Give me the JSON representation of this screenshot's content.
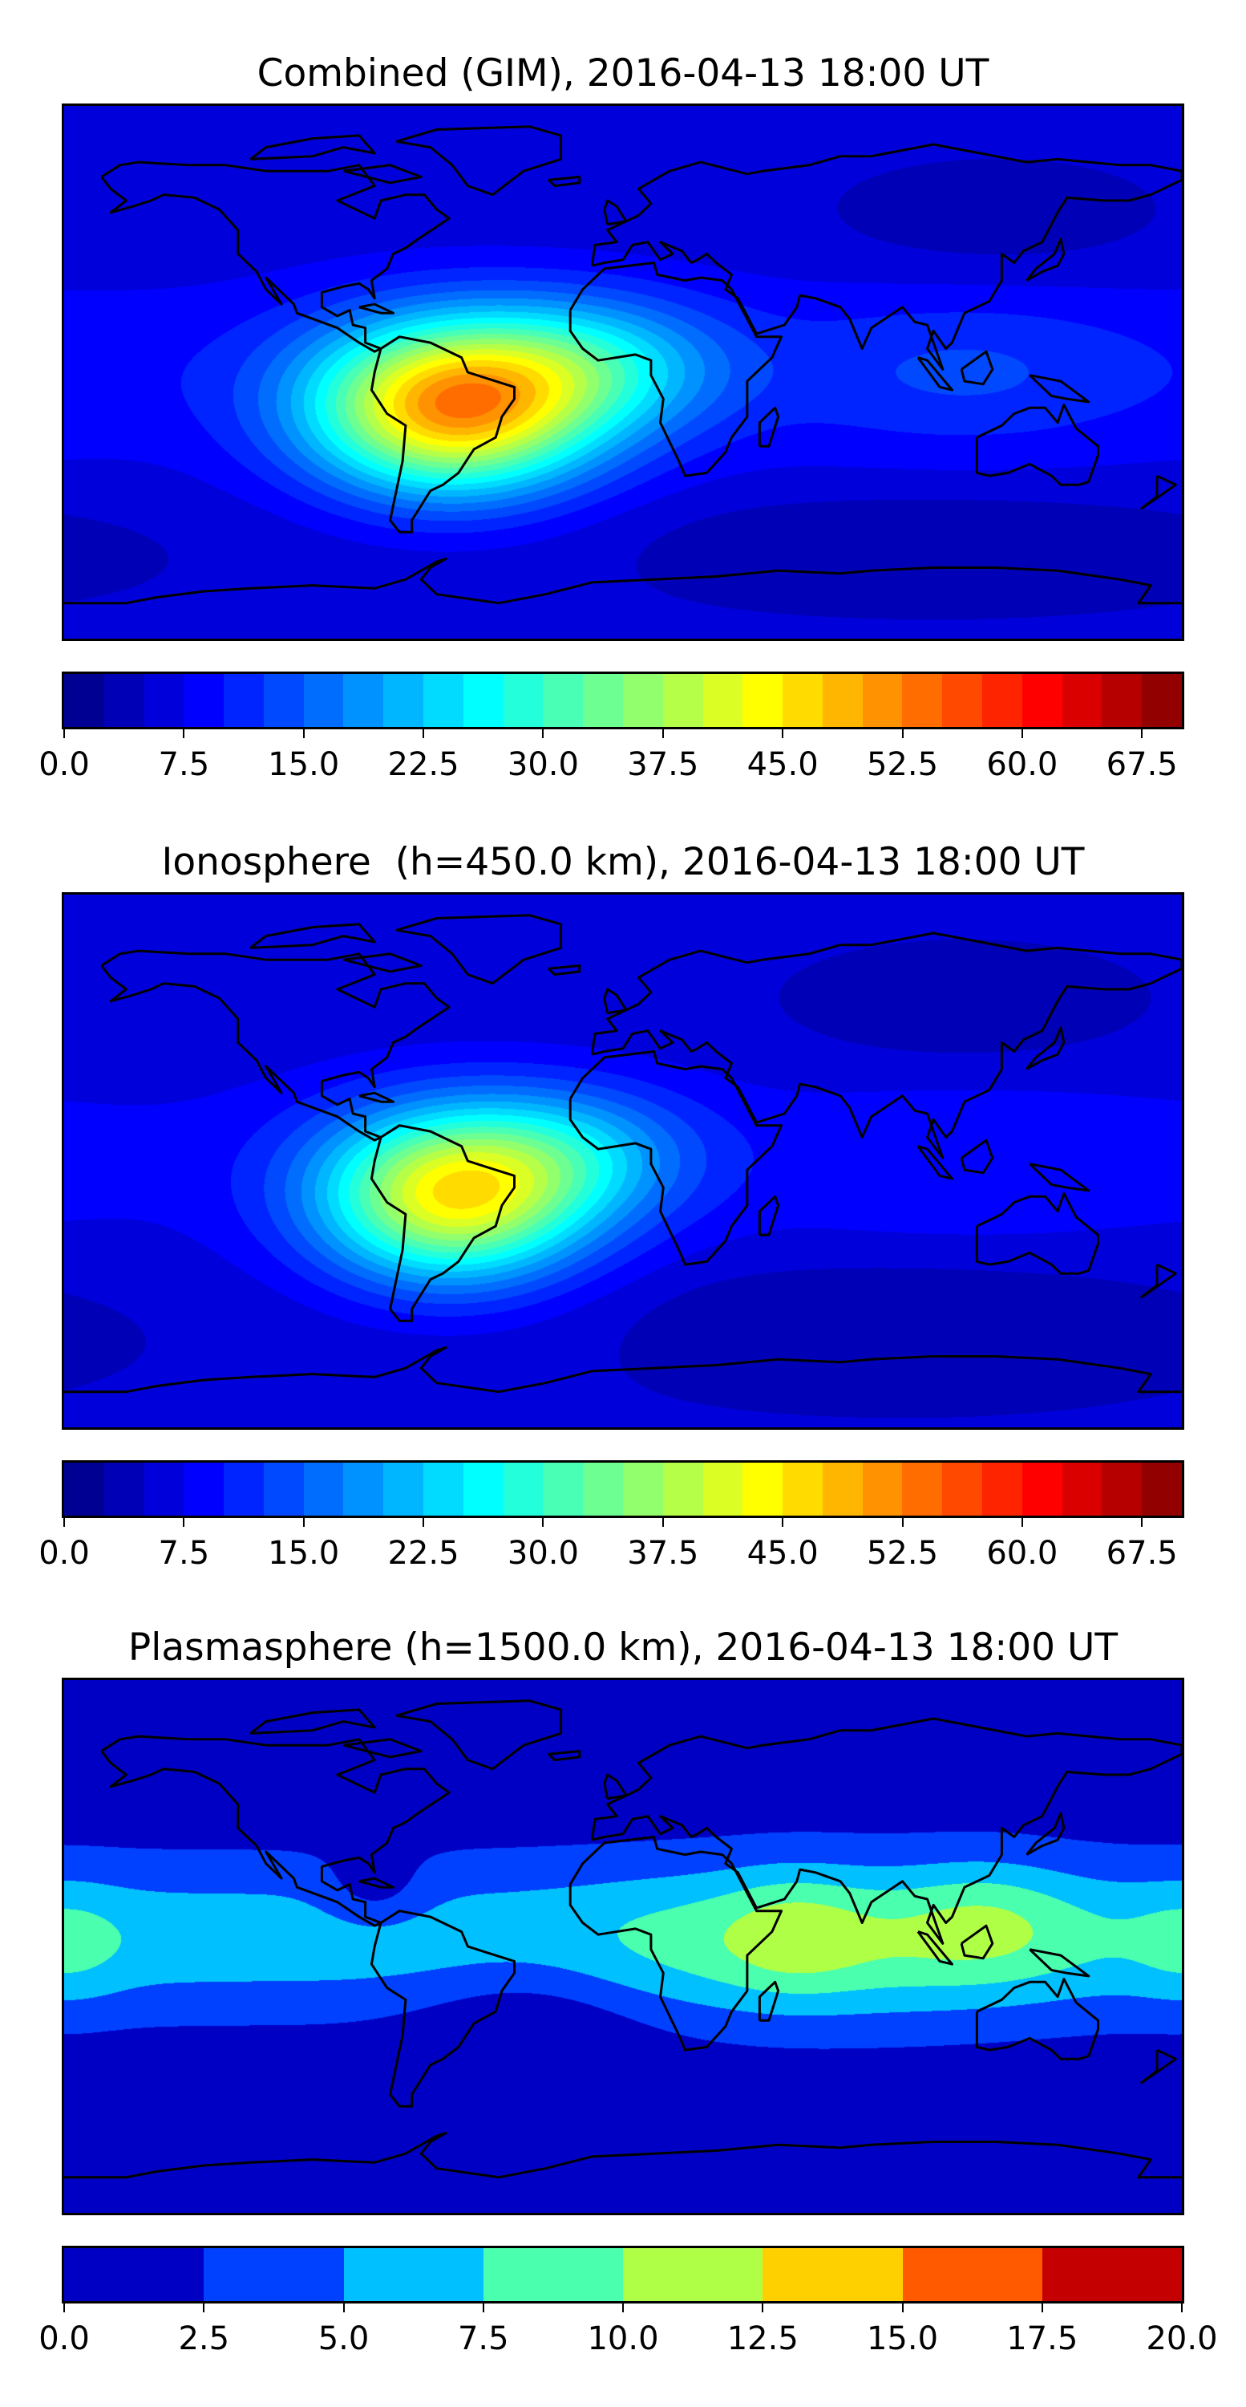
{
  "chart_data": [
    {
      "type": "heatmap",
      "title": "Combined (GIM), 2016-04-13 18:00 UT",
      "colormap": "jet",
      "levels": {
        "min": 0.0,
        "max": 70.0,
        "step": 2.5
      },
      "colorbar_ticks": [
        "0.0",
        "7.5",
        "15.0",
        "22.5",
        "30.0",
        "37.5",
        "45.0",
        "52.5",
        "60.0",
        "67.5"
      ],
      "colorbar_tick_values": [
        0,
        7.5,
        15,
        22.5,
        30,
        37.5,
        45,
        52.5,
        60,
        67.5
      ],
      "xrange_lon": [
        -180,
        180
      ],
      "yrange_lat": [
        -90,
        90
      ],
      "features": {
        "max_value_approx": 52,
        "max_location": "South America (~55W, 12S)",
        "min_value_approx": 3
      }
    },
    {
      "type": "heatmap",
      "title": "Ionosphere  (h=450.0 km), 2016-04-13 18:00 UT",
      "colormap": "jet",
      "levels": {
        "min": 0.0,
        "max": 70.0,
        "step": 2.5
      },
      "colorbar_ticks": [
        "0.0",
        "7.5",
        "15.0",
        "22.5",
        "30.0",
        "37.5",
        "45.0",
        "52.5",
        "60.0",
        "67.5"
      ],
      "colorbar_tick_values": [
        0,
        7.5,
        15,
        22.5,
        30,
        37.5,
        45,
        52.5,
        60,
        67.5
      ],
      "xrange_lon": [
        -180,
        180
      ],
      "yrange_lat": [
        -90,
        90
      ],
      "features": {
        "max_value_approx": 46,
        "max_location": "South America (~55W, 12S)",
        "min_value_approx": 3
      }
    },
    {
      "type": "heatmap",
      "title": "Plasmasphere (h=1500.0 km), 2016-04-13 18:00 UT",
      "colormap": "jet",
      "levels": {
        "min": 0.0,
        "max": 20.0,
        "step": 2.5
      },
      "colors": [
        "#0000c4",
        "#0040ff",
        "#00c0ff",
        "#4affad",
        "#b0ff47",
        "#ffd000",
        "#ff5a00",
        "#c40000"
      ],
      "colorbar_ticks": [
        "0.0",
        "2.5",
        "5.0",
        "7.5",
        "10.0",
        "12.5",
        "15.0",
        "17.5",
        "20.0"
      ],
      "colorbar_tick_values": [
        0,
        2.5,
        5,
        7.5,
        10,
        12.5,
        15,
        17.5,
        20
      ],
      "xrange_lon": [
        -180,
        180
      ],
      "yrange_lat": [
        -90,
        90
      ],
      "features": {
        "max_value_approx": 12,
        "max_location": "Arabian Sea / SE Asia",
        "min_value_approx": 1
      }
    }
  ]
}
